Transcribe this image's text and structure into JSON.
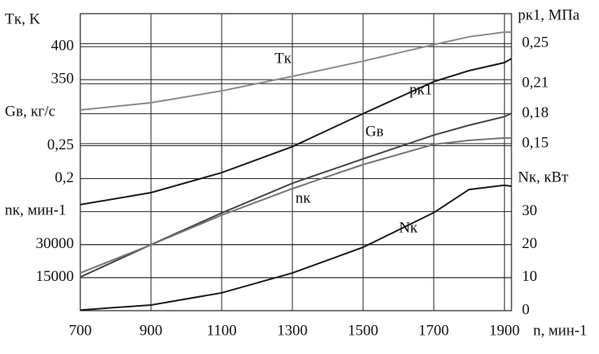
{
  "chart_data": {
    "type": "line",
    "xlabel": "n, мин-1",
    "x": [
      700,
      900,
      1100,
      1300,
      1500,
      1700,
      1800,
      1900,
      1920
    ],
    "xlim": [
      700,
      1920
    ],
    "xticks": [
      700,
      900,
      1100,
      1300,
      1500,
      1700,
      1900
    ],
    "grid": true,
    "axes": [
      {
        "label": "Tк, K",
        "side": "left",
        "lim": [
          0,
          450
        ],
        "ticks": [
          350,
          400
        ]
      },
      {
        "label": "Gв, кг/с",
        "side": "left",
        "lim": [
          0,
          0.45
        ],
        "ticks": [
          {
            "value": 0.2,
            "label": "0,2"
          },
          {
            "value": 0.25,
            "label": "0,25"
          }
        ]
      },
      {
        "label": "nк, мин-1",
        "side": "left",
        "lim": [
          0,
          135000
        ],
        "ticks": [
          15000,
          30000
        ]
      },
      {
        "label": "pк1, МПа",
        "side": "right",
        "lim": [
          -0.017,
          0.28
        ],
        "ticks": [
          {
            "value": 0.15,
            "label": "0,15"
          },
          {
            "value": 0.18,
            "label": "0,18"
          },
          {
            "value": 0.21,
            "label": "0,21"
          },
          {
            "value": 0.25,
            "label": "0,25"
          }
        ]
      },
      {
        "label": "Nк, кВт",
        "side": "right",
        "lim": [
          0,
          90
        ],
        "ticks": [
          0,
          10,
          20,
          30
        ]
      }
    ],
    "series": [
      {
        "name": "Tк",
        "axis": 0,
        "color": "#8a8a8a",
        "values": [
          304,
          315,
          333,
          355,
          378,
          403,
          415,
          422,
          422
        ]
      },
      {
        "name": "pк1",
        "axis": 3,
        "color": "#1a1a1a",
        "values": [
          0.089,
          0.101,
          0.121,
          0.147,
          0.18,
          0.212,
          0.223,
          0.231,
          0.235
        ]
      },
      {
        "name": "Gв",
        "axis": 1,
        "color": "#454545",
        "values": [
          0.051,
          0.1,
          0.148,
          0.193,
          0.23,
          0.266,
          0.281,
          0.294,
          0.299
        ]
      },
      {
        "name": "nк",
        "axis": 2,
        "color": "#757575",
        "values": [
          17150,
          29930,
          43430,
          55470,
          66420,
          75550,
          77370,
          78470,
          78470
        ]
      },
      {
        "name": "Nк",
        "axis": 4,
        "color": "#1a1a1a",
        "values": [
          0.2,
          1.7,
          5.4,
          11.4,
          19.2,
          29.7,
          36.7,
          38.0,
          37.7
        ]
      }
    ]
  }
}
